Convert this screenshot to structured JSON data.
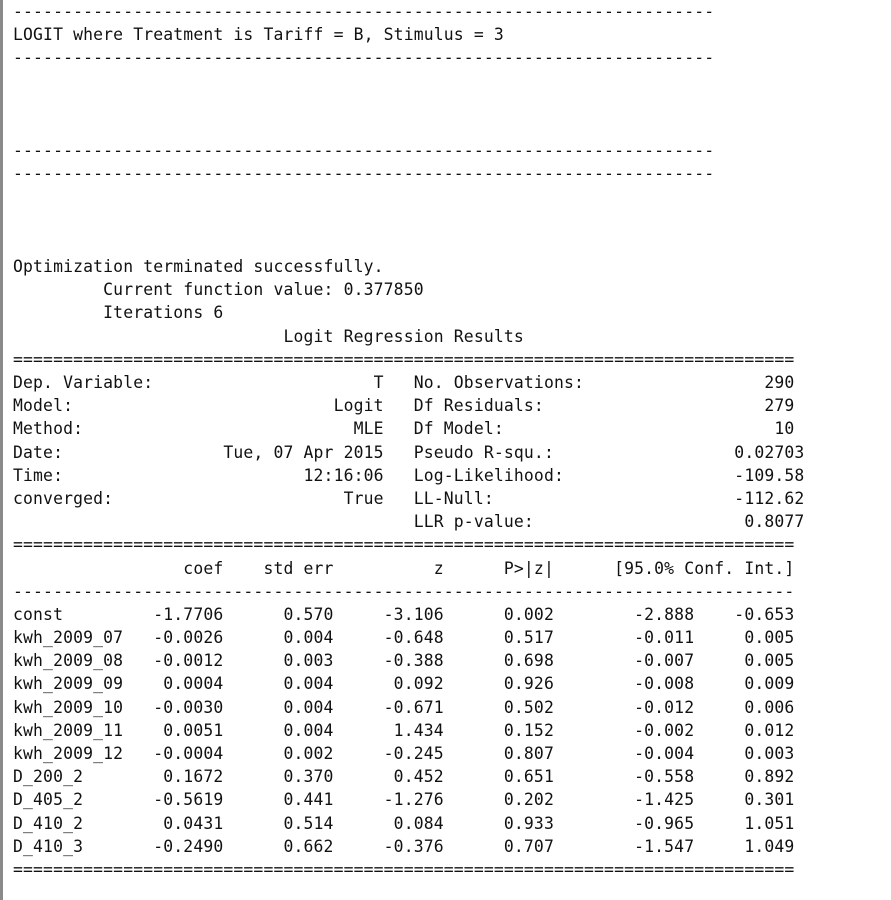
{
  "output": {
    "lines": [
      "----------------------------------------------------------------------",
      "LOGIT where Treatment is Tariff = B, Stimulus = 3",
      "----------------------------------------------------------------------",
      "",
      "",
      "",
      "----------------------------------------------------------------------",
      "----------------------------------------------------------------------",
      "",
      "",
      "",
      "Optimization terminated successfully.",
      "         Current function value: 0.377850",
      "         Iterations 6",
      "                           Logit Regression Results                           ",
      "==============================================================================",
      "Dep. Variable:                      T   No. Observations:                  290",
      "Model:                          Logit   Df Residuals:                      279",
      "Method:                           MLE   Df Model:                           10",
      "Date:                Tue, 07 Apr 2015   Pseudo R-squ.:                  0.02703",
      "Time:                        12:16:06   Log-Likelihood:                 -109.58",
      "converged:                       True   LL-Null:                        -112.62",
      "                                        LLR p-value:                     0.8077",
      "==============================================================================",
      "                 coef    std err          z      P>|z|      [95.0% Conf. Int.]",
      "------------------------------------------------------------------------------",
      "const         -1.7706      0.570     -3.106      0.002        -2.888    -0.653",
      "kwh_2009_07   -0.0026      0.004     -0.648      0.517        -0.011     0.005",
      "kwh_2009_08   -0.0012      0.003     -0.388      0.698        -0.007     0.005",
      "kwh_2009_09    0.0004      0.004      0.092      0.926        -0.008     0.009",
      "kwh_2009_10   -0.0030      0.004     -0.671      0.502        -0.012     0.006",
      "kwh_2009_11    0.0051      0.004      1.434      0.152        -0.002     0.012",
      "kwh_2009_12   -0.0004      0.002     -0.245      0.807        -0.004     0.003",
      "D_200_2        0.1672      0.370      0.452      0.651        -0.558     0.892",
      "D_405_2       -0.5619      0.441     -1.276      0.202        -1.425     0.301",
      "D_410_2        0.0431      0.514      0.084      0.933        -0.965     1.051",
      "D_410_3       -0.2490      0.662     -0.376      0.707        -1.547     1.049",
      "=============================================================================="
    ]
  }
}
